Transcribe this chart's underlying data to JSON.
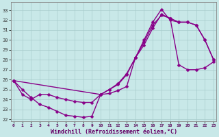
{
  "background_color": "#c8e8e8",
  "line_color": "#880088",
  "marker": "D",
  "markersize": 2.5,
  "linewidth": 1.0,
  "xlabel": "Windchill (Refroidissement éolien,°C)",
  "xlim": [
    -0.3,
    23.3
  ],
  "ylim": [
    21.8,
    33.8
  ],
  "xticks": [
    0,
    1,
    2,
    3,
    4,
    5,
    6,
    7,
    8,
    9,
    10,
    11,
    12,
    13,
    14,
    15,
    16,
    17,
    18,
    19,
    20,
    21,
    22,
    23
  ],
  "yticks": [
    22,
    23,
    24,
    25,
    26,
    27,
    28,
    29,
    30,
    31,
    32,
    33
  ],
  "series1_x": [
    0,
    1,
    2,
    3,
    4,
    5,
    6,
    7,
    8,
    9,
    10,
    11,
    12,
    13,
    14,
    15,
    16,
    17,
    18,
    19,
    20,
    21,
    22,
    23
  ],
  "series1_y": [
    25.9,
    25.0,
    24.2,
    23.5,
    23.2,
    22.8,
    22.4,
    22.3,
    22.2,
    22.3,
    24.5,
    24.6,
    24.9,
    25.3,
    28.2,
    30.0,
    31.8,
    33.1,
    32.0,
    31.8,
    31.8,
    31.5,
    30.0,
    28.0
  ],
  "series2_x": [
    0,
    10,
    11,
    12,
    13,
    14,
    15,
    16,
    17,
    18,
    19,
    20,
    21,
    22,
    23
  ],
  "series2_y": [
    25.9,
    24.5,
    25.0,
    25.6,
    26.6,
    28.2,
    29.8,
    31.5,
    32.5,
    32.2,
    31.8,
    31.8,
    31.5,
    30.0,
    28.0
  ],
  "series3_x": [
    0,
    1,
    2,
    3,
    4,
    5,
    6,
    7,
    8,
    9,
    10,
    11,
    12,
    13,
    14,
    15,
    16,
    17,
    18,
    19,
    20,
    21,
    22,
    23
  ],
  "series3_y": [
    25.9,
    24.5,
    24.0,
    24.5,
    24.5,
    24.2,
    24.0,
    23.8,
    23.7,
    23.7,
    24.5,
    25.0,
    25.5,
    26.5,
    28.2,
    29.5,
    31.2,
    32.6,
    32.2,
    27.5,
    27.0,
    27.0,
    27.2,
    27.8
  ]
}
